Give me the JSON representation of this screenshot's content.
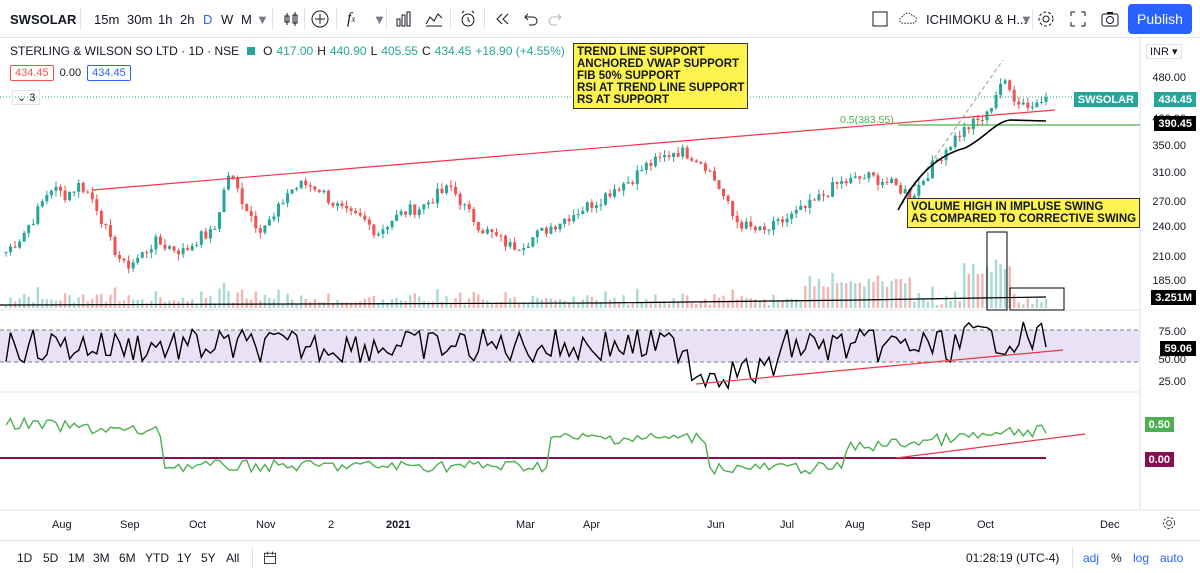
{
  "toolbar": {
    "symbol": "SWSOLAR",
    "intervals": [
      "15m",
      "30m",
      "1h",
      "2h",
      "D",
      "W",
      "M"
    ],
    "active_interval": "D",
    "indicator_template": "ICHIMOKU & H...",
    "publish_label": "Publish",
    "icons": [
      "bar-style-icon",
      "add-compare-icon",
      "indicators-icon",
      "templates-icon",
      "alert-icon",
      "replay-icon",
      "undo-icon",
      "redo-icon",
      "layout-icon",
      "cloud-icon",
      "settings-icon",
      "fullscreen-icon",
      "snapshot-icon"
    ]
  },
  "legend": {
    "title": "STERLING & WILSON SO LTD · 1D · NSE",
    "o_label": "O",
    "o_value": "417.00",
    "h_label": "H",
    "h_value": "440.90",
    "l_label": "L",
    "l_value": "405.55",
    "c_label": "C",
    "c_value": "434.45",
    "change": "+18.90 (+4.55%)",
    "bid": "434.45",
    "spread": "0.00",
    "ask": "434.45",
    "collapse_count": "3",
    "currency": "INR"
  },
  "notes": {
    "support": [
      "TREND LINE SUPPORT",
      "ANCHORED VWAP SUPPORT",
      "FIB 50% SUPPORT",
      "RSI AT TREND LINE SUPPORT",
      "RS AT SUPPORT"
    ],
    "volume": [
      "VOLUME HIGH IN IMPLUSE SWING",
      "AS COMPARED TO CORRECTIVE SWING"
    ],
    "fib_label": "0.5(383.55)"
  },
  "price_axis": {
    "labels": [
      "480.00",
      "420.00",
      "350.00",
      "310.00",
      "270.00",
      "240.00",
      "210.00",
      "185.00"
    ],
    "tags": {
      "symbol_tag": "SWSOLAR",
      "last_price": "434.45",
      "vwap": "390.45",
      "volume": "3.251M",
      "rsi": "59.06",
      "rs": "0.50",
      "rs_base": "0.00"
    },
    "rsi_labels": [
      "75.00",
      "50.00",
      "25.00"
    ]
  },
  "time_axis": [
    "Aug",
    "Sep",
    "Oct",
    "Nov",
    "2",
    "2021",
    "Mar",
    "Apr",
    "Jun",
    "Jul",
    "Aug",
    "Sep",
    "Oct",
    "Dec"
  ],
  "bottom": {
    "ranges": [
      "1D",
      "5D",
      "1M",
      "3M",
      "6M",
      "YTD",
      "1Y",
      "5Y",
      "All"
    ],
    "time": "01:28:19 (UTC-4)",
    "adj": "adj",
    "pct": "%",
    "log": "log",
    "auto": "auto"
  },
  "colors": {
    "up": "#26a69a",
    "down": "#ef5350",
    "accent": "#2962ff",
    "rsi_band": "#e9e1f5",
    "note_bg": "#fff44f"
  },
  "chart_data": {
    "type": "candlestick",
    "title": "STERLING & WILSON SO LTD · 1D · NSE",
    "close_approx": [
      205,
      220,
      245,
      280,
      270,
      285,
      260,
      215,
      190,
      200,
      215,
      210,
      205,
      220,
      225,
      300,
      260,
      230,
      240,
      275,
      285,
      280,
      260,
      245,
      240,
      225,
      240,
      250,
      255,
      270,
      280,
      250,
      230,
      220,
      210,
      215,
      225,
      235,
      245,
      255,
      265,
      280,
      290,
      310,
      320,
      335,
      330,
      315,
      280,
      240,
      230,
      225,
      235,
      245,
      255,
      270,
      285,
      290,
      295,
      290,
      280,
      270,
      300,
      330,
      360,
      380,
      395,
      470,
      430,
      415,
      434.45
    ],
    "last_close": 434.45,
    "fib_level": 383.55,
    "vwap": 390.45,
    "volume_last": "3.251M",
    "rsi_last": 59.06,
    "rs_last": 0.5,
    "ylim": [
      185,
      500
    ]
  }
}
